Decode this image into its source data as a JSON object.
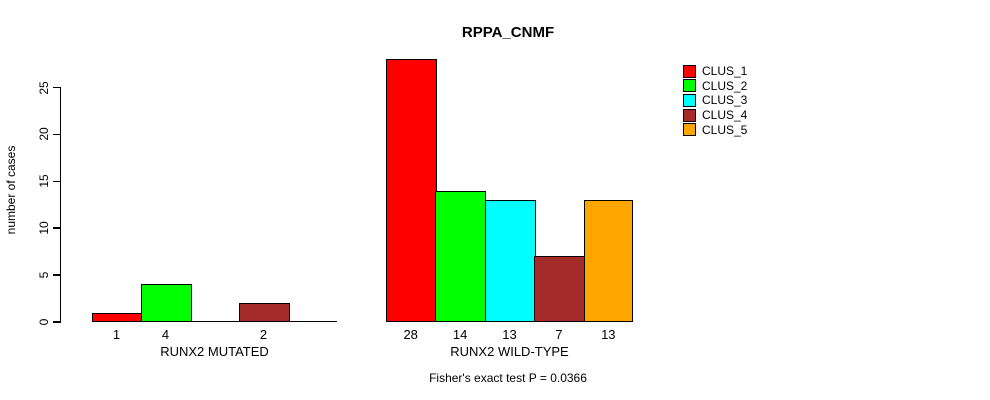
{
  "chart": {
    "title": "RPPA_CNMF",
    "ylabel": "number of cases",
    "footer": "Fisher's exact test P = 0.0366"
  },
  "chart_data": {
    "type": "bar",
    "title": "RPPA_CNMF",
    "xlabel": "",
    "ylabel": "number of cases",
    "yticks": [
      0,
      5,
      10,
      15,
      20,
      25
    ],
    "ylim": [
      0,
      28
    ],
    "grid": false,
    "legend_position": "right",
    "categories": [
      "RUNX2 MUTATED",
      "RUNX2 WILD-TYPE"
    ],
    "series": [
      {
        "name": "CLUS_1",
        "color": "#ff0000",
        "values": [
          1,
          28
        ]
      },
      {
        "name": "CLUS_2",
        "color": "#00ff00",
        "values": [
          4,
          14
        ]
      },
      {
        "name": "CLUS_3",
        "color": "#00ffff",
        "values": [
          0,
          13
        ]
      },
      {
        "name": "CLUS_4",
        "color": "#a52a2a",
        "values": [
          2,
          7
        ]
      },
      {
        "name": "CLUS_5",
        "color": "#ffa500",
        "values": [
          0,
          13
        ]
      }
    ],
    "bar_value_labels_shown_when_nonzero": true,
    "annotation": "Fisher's exact test P = 0.0366"
  }
}
